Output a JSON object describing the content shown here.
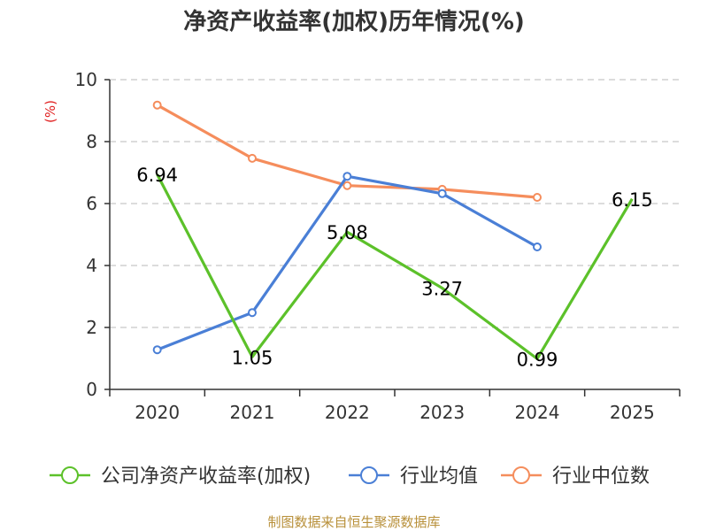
{
  "chart_data": {
    "type": "line",
    "title": "净资产收益率(加权)历年情况(%)",
    "ylabel": "(%)",
    "xlabel": "",
    "categories": [
      "2020",
      "2021",
      "2022",
      "2023",
      "2024",
      "2025"
    ],
    "ylim": [
      0,
      10
    ],
    "yticks": [
      0,
      2,
      4,
      6,
      8,
      10
    ],
    "grid": true,
    "legend_position": "bottom",
    "series": [
      {
        "name": "公司净资产收益率(加权)",
        "color": "#5cc12a",
        "values": [
          6.94,
          1.05,
          5.08,
          3.27,
          0.99,
          6.15
        ],
        "labels": [
          "6.94",
          "1.05",
          "5.08",
          "3.27",
          "0.99",
          "6.15"
        ],
        "show_markers": false
      },
      {
        "name": "行业均值",
        "color": "#4a7fd6",
        "values": [
          1.28,
          2.48,
          6.88,
          6.32,
          4.6,
          null
        ],
        "show_markers": true
      },
      {
        "name": "行业中位数",
        "color": "#f58d5c",
        "values": [
          9.18,
          7.46,
          6.58,
          6.46,
          6.2,
          null
        ],
        "show_markers": true
      }
    ],
    "source": "制图数据来自恒生聚源数据库"
  }
}
